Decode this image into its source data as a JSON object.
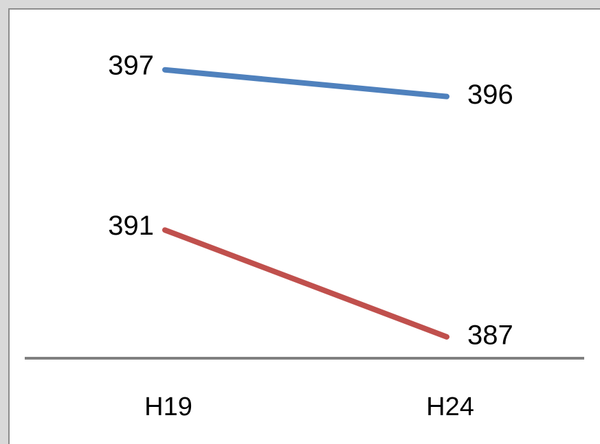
{
  "chart_data": {
    "type": "line",
    "categories": [
      "H19",
      "H24"
    ],
    "series": [
      {
        "values": [
          397,
          396
        ],
        "color": "#4f81bd"
      },
      {
        "values": [
          391,
          387
        ],
        "color": "#c0504d"
      }
    ],
    "ylim": [
      386.2,
      399.1
    ],
    "title": "",
    "xlabel": "",
    "ylabel": "",
    "grid": false,
    "legend": "none",
    "axis_color": "#808080",
    "background": "#ffffff",
    "frame_color": "#d9d9d9"
  }
}
